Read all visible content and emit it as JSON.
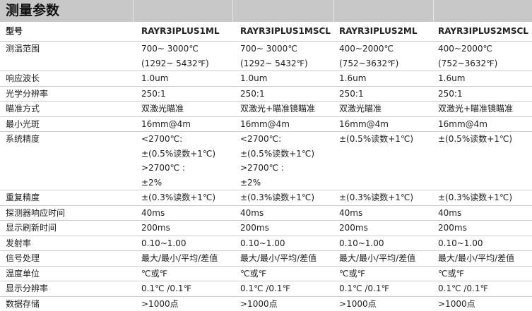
{
  "title": "测量参数",
  "columns": [
    "型号",
    "RAYR3IPLUS1ML",
    "RAYR3IPLUS1MSCL",
    "RAYR3IPLUS2ML",
    "RAYR3IPLUS2MSCL"
  ],
  "rows": [
    {
      "label": "测温范围",
      "values": [
        [
          "700~ 3000℃",
          "(1292~ 5432℉)"
        ],
        [
          "700~ 3000℃",
          "(1292~ 5432℉)"
        ],
        [
          "400~2000℃",
          "(752~3632℉)"
        ],
        [
          "400~2000℃",
          "(752~3632℉)"
        ]
      ]
    },
    {
      "label": "响应波长",
      "values": [
        [
          "1.0um"
        ],
        [
          "1.0um"
        ],
        [
          "1.6um"
        ],
        [
          "1.6um"
        ]
      ]
    },
    {
      "label": "光学分辨率",
      "values": [
        [
          "250:1"
        ],
        [
          "250:1"
        ],
        [
          "250:1"
        ],
        [
          "250:1"
        ]
      ]
    },
    {
      "label": "瞄准方式",
      "values": [
        [
          "双激光瞄准"
        ],
        [
          "双激光+瞄准镜瞄准"
        ],
        [
          "双激光瞄准"
        ],
        [
          "双激光+瞄准镜瞄准"
        ]
      ]
    },
    {
      "label": "最小光斑",
      "values": [
        [
          "16mm@4m"
        ],
        [
          "16mm@4m"
        ],
        [
          "16mm@4m"
        ],
        [
          "16mm@4m"
        ]
      ]
    },
    {
      "label": "系统精度",
      "values": [
        [
          "<2700℃:",
          "±(0.5%读数+1℃)",
          ">2700℃ :",
          "±2%"
        ],
        [
          "<2700℃:",
          "±(0.5%读数+1℃)",
          ">2700℃ :",
          "±2%"
        ],
        [
          "±(0.5%读数+1℃)"
        ],
        [
          "±(0.5%读数+1℃)"
        ]
      ]
    },
    {
      "label": "重复精度",
      "values": [
        [
          "±(0.3%读数+1℃)"
        ],
        [
          "±(0.3%读数+1℃)"
        ],
        [
          "±(0.3%读数+1℃)"
        ],
        [
          "±(0.3%读数+1℃)"
        ]
      ]
    },
    {
      "label": "探测器响应时间",
      "values": [
        [
          "40ms"
        ],
        [
          "40ms"
        ],
        [
          "40ms"
        ],
        [
          "40ms"
        ]
      ]
    },
    {
      "label": "显示刷新时间",
      "values": [
        [
          "200ms"
        ],
        [
          "200ms"
        ],
        [
          "200ms"
        ],
        [
          "200ms"
        ]
      ]
    },
    {
      "label": "发射率",
      "values": [
        [
          "0.10~1.00"
        ],
        [
          "0.10~1.00"
        ],
        [
          "0.10~1.00"
        ],
        [
          "0.10~1.00"
        ]
      ]
    },
    {
      "label": "信号处理",
      "values": [
        [
          "最大/最小/平均/差值"
        ],
        [
          "最大/最小/平均/差值"
        ],
        [
          "最大/最小/平均/差值"
        ],
        [
          "最大/最小/平均/差值"
        ]
      ]
    },
    {
      "label": "温度单位",
      "values": [
        [
          "℃或℉"
        ],
        [
          "℃或℉"
        ],
        [
          "℃或℉"
        ],
        [
          "℃或℉"
        ]
      ]
    },
    {
      "label": "显示分辨率",
      "values": [
        [
          "0.1℃ /0.1℉"
        ],
        [
          "0.1℃ /0.1℉"
        ],
        [
          "0.1℃ /0.1℉"
        ],
        [
          "0.1℃ /0.1℉"
        ]
      ]
    },
    {
      "label": "数据存储",
      "values": [
        [
          ">1000点"
        ],
        [
          ">1000点"
        ],
        [
          ">1000点"
        ],
        [
          ">1000点"
        ]
      ]
    }
  ]
}
